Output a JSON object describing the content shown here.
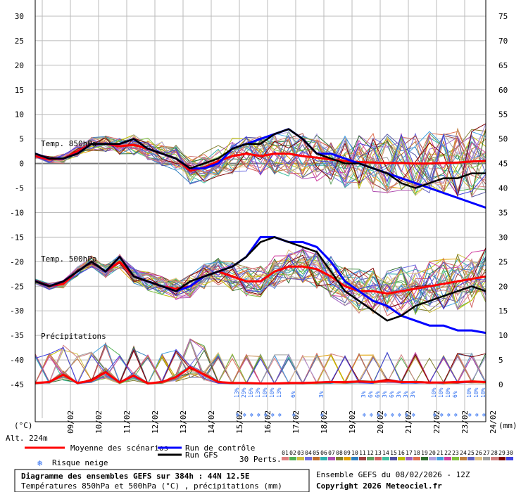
{
  "chart_data": {
    "type": "line",
    "title": "Diagramme des ensembles GEFS sur 384h : 44N 12.5E",
    "subtitle": "Températures 850hPa et 500hPa (°C) , précipitations (mm)",
    "ensemble_info": "Ensemble GEFS du 08/02/2026 - 12Z",
    "copyright": "Copyright 2026 Meteociel.fr",
    "left_axis": {
      "unit": "(°C)",
      "ticks": [
        30,
        25,
        20,
        15,
        10,
        5,
        0,
        -5,
        -10,
        -15,
        -20,
        -25,
        -30,
        -35,
        -40,
        -45
      ],
      "range": [
        -45,
        30
      ]
    },
    "right_axis": {
      "unit": "(mm)",
      "ticks": [
        75,
        70,
        65,
        60,
        55,
        50,
        45,
        40,
        35,
        30,
        25,
        20,
        15,
        10,
        5,
        0
      ]
    },
    "altitude": "Alt. 224m",
    "x_labels": [
      "09/02",
      "10/02",
      "11/02",
      "12/02",
      "13/02",
      "14/02",
      "15/02",
      "16/02",
      "17/02",
      "18/02",
      "19/02",
      "20/02",
      "21/02",
      "22/02",
      "23/02",
      "24/02"
    ],
    "panel_labels": {
      "t850": "Temp. 850hPa",
      "t500": "Temp. 500hPa",
      "precip": "Précipitations"
    },
    "x_hours": [
      0,
      12,
      24,
      36,
      48,
      60,
      72,
      84,
      96,
      108,
      120,
      132,
      144,
      156,
      168,
      180,
      192,
      204,
      216,
      228,
      240,
      252,
      264,
      276,
      288,
      300,
      312,
      324,
      336,
      348,
      360,
      372,
      384
    ],
    "series": [
      {
        "name": "Moyenne des scénarios",
        "panel": "t850",
        "values": [
          1.5,
          0.8,
          1.0,
          2.5,
          4.0,
          4.0,
          3.5,
          3.8,
          3.0,
          2.0,
          1.0,
          -1.5,
          -0.8,
          0.5,
          1.5,
          2.0,
          1.5,
          2.0,
          2.0,
          1.5,
          1.2,
          0.8,
          0.5,
          0.3,
          0.2,
          0.1,
          0.1,
          0.0,
          0.0,
          0.1,
          0.2,
          0.4,
          0.5
        ]
      },
      {
        "name": "Run de contrôle",
        "panel": "t850",
        "values": [
          2,
          1,
          1,
          2,
          4,
          4,
          4,
          5,
          3,
          2,
          1,
          -1,
          -1,
          0,
          3,
          4,
          5,
          6,
          7,
          5,
          2,
          2,
          1,
          0,
          -1,
          -2,
          -3,
          -4,
          -5,
          -6,
          -7,
          -8,
          -9
        ]
      },
      {
        "name": "Run GFS",
        "panel": "t850",
        "values": [
          2,
          1,
          1,
          2,
          4,
          4,
          4,
          5,
          3,
          2,
          1,
          -1,
          0,
          1,
          3,
          4,
          4,
          6,
          7,
          5,
          2,
          1,
          0,
          0,
          -1,
          -2,
          -4,
          -5,
          -4,
          -3,
          -3,
          -2,
          -2
        ]
      },
      {
        "name": "Moyenne des scénarios",
        "panel": "t500",
        "values": [
          -24,
          -25,
          -24.5,
          -22,
          -20,
          -22,
          -20,
          -23,
          -24,
          -25,
          -25.5,
          -25,
          -23,
          -22,
          -23,
          -24,
          -24,
          -22,
          -21,
          -21,
          -21.5,
          -23,
          -25,
          -26,
          -26,
          -26.5,
          -26,
          -25.5,
          -25,
          -24.5,
          -24,
          -23.5,
          -23
        ]
      },
      {
        "name": "Run de contrôle",
        "panel": "t500",
        "values": [
          -24,
          -25,
          -24,
          -22,
          -20,
          -22,
          -19,
          -23,
          -24,
          -25,
          -26,
          -25,
          -23,
          -22,
          -21,
          -19,
          -15,
          -15,
          -16,
          -16,
          -17,
          -20,
          -24,
          -26,
          -28,
          -29,
          -31,
          -32,
          -33,
          -33,
          -34,
          -34,
          -34.5
        ]
      },
      {
        "name": "Run GFS",
        "panel": "t500",
        "values": [
          -24,
          -25,
          -24,
          -22,
          -20,
          -22,
          -19,
          -23,
          -24,
          -25,
          -26,
          -24,
          -23,
          -22,
          -21,
          -19,
          -16,
          -15,
          -16,
          -17,
          -18,
          -22,
          -26,
          -28,
          -30,
          -32,
          -31,
          -29,
          -28,
          -27,
          -26,
          -25,
          -26
        ]
      },
      {
        "name": "Moyenne des scénarios",
        "panel": "precip",
        "values": [
          0.3,
          0.5,
          2.0,
          0.3,
          0.8,
          2.5,
          0.4,
          1.8,
          0.2,
          0.5,
          1.5,
          3.5,
          2.0,
          0.5,
          0.3,
          0.3,
          0.2,
          0.2,
          0.3,
          0.3,
          0.4,
          0.5,
          0.5,
          0.6,
          0.5,
          0.8,
          0.5,
          0.5,
          0.4,
          0.4,
          0.5,
          0.6,
          0.5
        ]
      }
    ],
    "members_count": 30,
    "member_colors": [
      "#e08080",
      "#50b050",
      "#d0c040",
      "#7070e0",
      "#c07030",
      "#30b0b0",
      "#b050b0",
      "#808030",
      "#e0a000",
      "#3080c0",
      "#a04040",
      "#60a060",
      "#d06060",
      "#40c0a0",
      "#5050a0",
      "#c0c000",
      "#a060c0",
      "#e07050",
      "#307030",
      "#b0a0e0",
      "#40a0e0",
      "#d040a0",
      "#80c040",
      "#c08040",
      "#6060c0",
      "#e0c080",
      "#a0a0a0",
      "#d08080",
      "#800000",
      "#4040e0"
    ],
    "snow_risk": [
      {
        "hour": 174,
        "pct": "13%"
      },
      {
        "hour": 180,
        "pct": "29%"
      },
      {
        "hour": 186,
        "pct": "16%"
      },
      {
        "hour": 192,
        "pct": "13%"
      },
      {
        "hour": 198,
        "pct": "10%"
      },
      {
        "hour": 204,
        "pct": "10%"
      },
      {
        "hour": 210,
        "pct": "13%"
      },
      {
        "hour": 222,
        "pct": "6%"
      },
      {
        "hour": 246,
        "pct": "3%"
      },
      {
        "hour": 282,
        "pct": "3%"
      },
      {
        "hour": 288,
        "pct": "6%"
      },
      {
        "hour": 294,
        "pct": "6%"
      },
      {
        "hour": 300,
        "pct": "3%"
      },
      {
        "hour": 306,
        "pct": "6%"
      },
      {
        "hour": 312,
        "pct": "3%"
      },
      {
        "hour": 318,
        "pct": "3%"
      },
      {
        "hour": 324,
        "pct": "3%"
      },
      {
        "hour": 342,
        "pct": "10%"
      },
      {
        "hour": 348,
        "pct": "10%"
      },
      {
        "hour": 354,
        "pct": "10%"
      },
      {
        "hour": 360,
        "pct": "6%"
      },
      {
        "hour": 372,
        "pct": "10%"
      },
      {
        "hour": 378,
        "pct": "10%"
      },
      {
        "hour": 384,
        "pct": "10%"
      }
    ],
    "legend": {
      "mean": "Moyenne des scénarios",
      "control": "Run de contrôle",
      "gfs": "Run GFS",
      "snow": "Risque neige",
      "perts": "30 Perts."
    }
  }
}
